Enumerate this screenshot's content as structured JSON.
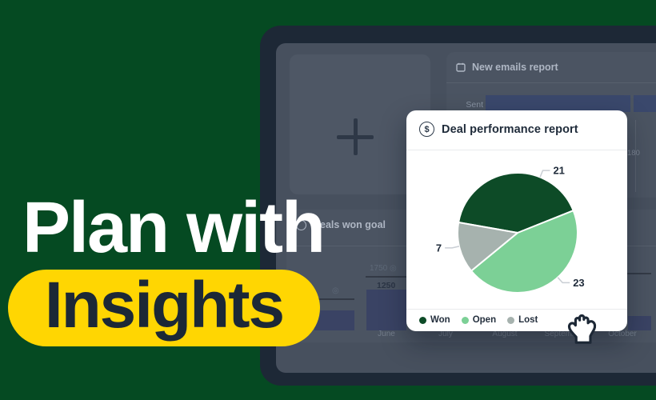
{
  "headline": {
    "line1": "Plan with",
    "line2": "Insights",
    "pill_color": "#FFD602",
    "text_color": "#FFFFFF",
    "pill_text_color": "#1C2836"
  },
  "dashboard": {
    "emails_card": {
      "title": "New emails report",
      "row_label": "Sent",
      "axis_mark": "180",
      "bar_color": "#3A486C"
    },
    "goal_card": {
      "title": "Deals won goal",
      "goal_value": "1750",
      "target_glyph": "◎",
      "bar_value": "1250",
      "bar_color": "#3A4364"
    }
  },
  "report_card": {
    "title": "Deal performance report",
    "icon_glyph": "$"
  },
  "chart_data": [
    {
      "type": "pie",
      "title": "Deal performance report",
      "labels": [
        "Won",
        "Open",
        "Lost"
      ],
      "values": [
        21,
        23,
        7
      ],
      "colors": [
        "#0D4B27",
        "#7CD096",
        "#A6B2AE"
      ],
      "start_angle_deg": 280,
      "label_angles_deg": [
        22,
        138,
        257
      ],
      "legend_position": "bottom"
    },
    {
      "type": "bar",
      "title": "Deals won goal",
      "categories": [
        "June",
        "July",
        "August",
        "September",
        "October"
      ],
      "series": [
        {
          "name": "Deals won",
          "values": [
            1250,
            null,
            null,
            null,
            null
          ]
        }
      ],
      "goals": [
        1750,
        null,
        null,
        null,
        null
      ]
    },
    {
      "type": "bar",
      "title": "New emails report",
      "categories": [
        "Sent"
      ],
      "axis_marks": [
        180
      ]
    }
  ]
}
